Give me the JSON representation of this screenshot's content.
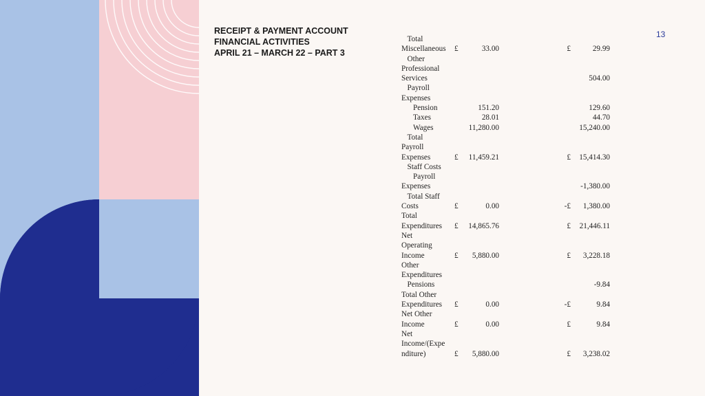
{
  "header": {
    "title_lines": [
      "RECEIPT & PAYMENT ACCOUNT",
      "FINANCIAL ACTIVITIES",
      "APRIL 21 – MARCH 22 – PART 3"
    ],
    "page_number": "13"
  },
  "colors": {
    "light_blue": "#a9c2e6",
    "pink": "#f6cfd3",
    "navy": "#1f2d8f",
    "background": "#fbf7f4"
  },
  "table": {
    "rows": [
      {
        "label": "Total",
        "indent": 1,
        "cur1": "",
        "val1": "",
        "cur2": "",
        "val2": ""
      },
      {
        "label": "Miscellaneous",
        "indent": 0,
        "cur1": "£",
        "val1": "33.00",
        "cur2": "£",
        "val2": "29.99"
      },
      {
        "label": "Other",
        "indent": 1,
        "cur1": "",
        "val1": "",
        "cur2": "",
        "val2": ""
      },
      {
        "label": "Professional",
        "indent": 0,
        "cur1": "",
        "val1": "",
        "cur2": "",
        "val2": ""
      },
      {
        "label": "Services",
        "indent": 0,
        "cur1": "",
        "val1": "",
        "cur2": "",
        "val2": "504.00"
      },
      {
        "label": "Payroll",
        "indent": 1,
        "cur1": "",
        "val1": "",
        "cur2": "",
        "val2": ""
      },
      {
        "label": "Expenses",
        "indent": 0,
        "cur1": "",
        "val1": "",
        "cur2": "",
        "val2": ""
      },
      {
        "label": "Pension",
        "indent": 2,
        "cur1": "",
        "val1": "151.20",
        "cur2": "",
        "val2": "129.60"
      },
      {
        "label": "Taxes",
        "indent": 2,
        "cur1": "",
        "val1": "28.01",
        "cur2": "",
        "val2": "44.70"
      },
      {
        "label": "Wages",
        "indent": 2,
        "cur1": "",
        "val1": "11,280.00",
        "cur2": "",
        "val2": "15,240.00"
      },
      {
        "label": "Total",
        "indent": 1,
        "cur1": "",
        "val1": "",
        "cur2": "",
        "val2": ""
      },
      {
        "label": "Payroll",
        "indent": 0,
        "cur1": "",
        "val1": "",
        "cur2": "",
        "val2": ""
      },
      {
        "label": "Expenses",
        "indent": 0,
        "cur1": "£",
        "val1": "11,459.21",
        "cur2": "£",
        "val2": "15,414.30"
      },
      {
        "label": "Staff Costs",
        "indent": 1,
        "cur1": "",
        "val1": "",
        "cur2": "",
        "val2": ""
      },
      {
        "label": "Payroll",
        "indent": 2,
        "cur1": "",
        "val1": "",
        "cur2": "",
        "val2": ""
      },
      {
        "label": "Expenses",
        "indent": 0,
        "cur1": "",
        "val1": "",
        "cur2": "",
        "val2": "-1,380.00"
      },
      {
        "label": "Total Staff",
        "indent": 1,
        "cur1": "",
        "val1": "",
        "cur2": "",
        "val2": ""
      },
      {
        "label": "Costs",
        "indent": 0,
        "cur1": "£",
        "val1": "0.00",
        "cur2": "-£",
        "val2": "1,380.00"
      },
      {
        "label": "Total",
        "indent": 0,
        "cur1": "",
        "val1": "",
        "cur2": "",
        "val2": ""
      },
      {
        "label": "Expenditures",
        "indent": 0,
        "cur1": "£",
        "val1": "14,865.76",
        "cur2": "£",
        "val2": "21,446.11"
      },
      {
        "label": "Net",
        "indent": 0,
        "cur1": "",
        "val1": "",
        "cur2": "",
        "val2": ""
      },
      {
        "label": "Operating",
        "indent": 0,
        "cur1": "",
        "val1": "",
        "cur2": "",
        "val2": ""
      },
      {
        "label": "Income",
        "indent": 0,
        "cur1": "£",
        "val1": "5,880.00",
        "cur2": "£",
        "val2": "3,228.18"
      },
      {
        "label": "Other",
        "indent": 0,
        "cur1": "",
        "val1": "",
        "cur2": "",
        "val2": ""
      },
      {
        "label": "Expenditures",
        "indent": 0,
        "cur1": "",
        "val1": "",
        "cur2": "",
        "val2": ""
      },
      {
        "label": "Pensions",
        "indent": 1,
        "cur1": "",
        "val1": "",
        "cur2": "",
        "val2": "-9.84"
      },
      {
        "label": "Total Other",
        "indent": 0,
        "cur1": "",
        "val1": "",
        "cur2": "",
        "val2": ""
      },
      {
        "label": "Expenditures",
        "indent": 0,
        "cur1": "£",
        "val1": "0.00",
        "cur2": "-£",
        "val2": "9.84"
      },
      {
        "label": "Net Other",
        "indent": 0,
        "cur1": "",
        "val1": "",
        "cur2": "",
        "val2": ""
      },
      {
        "label": "Income",
        "indent": 0,
        "cur1": "£",
        "val1": "0.00",
        "cur2": "£",
        "val2": "9.84"
      },
      {
        "label": "Net",
        "indent": 0,
        "cur1": "",
        "val1": "",
        "cur2": "",
        "val2": ""
      },
      {
        "label": "Income/(Expe",
        "indent": 0,
        "cur1": "",
        "val1": "",
        "cur2": "",
        "val2": ""
      },
      {
        "label": "nditure)",
        "indent": 0,
        "cur1": "£",
        "val1": "5,880.00",
        "cur2": "£",
        "val2": "3,238.02"
      }
    ]
  }
}
